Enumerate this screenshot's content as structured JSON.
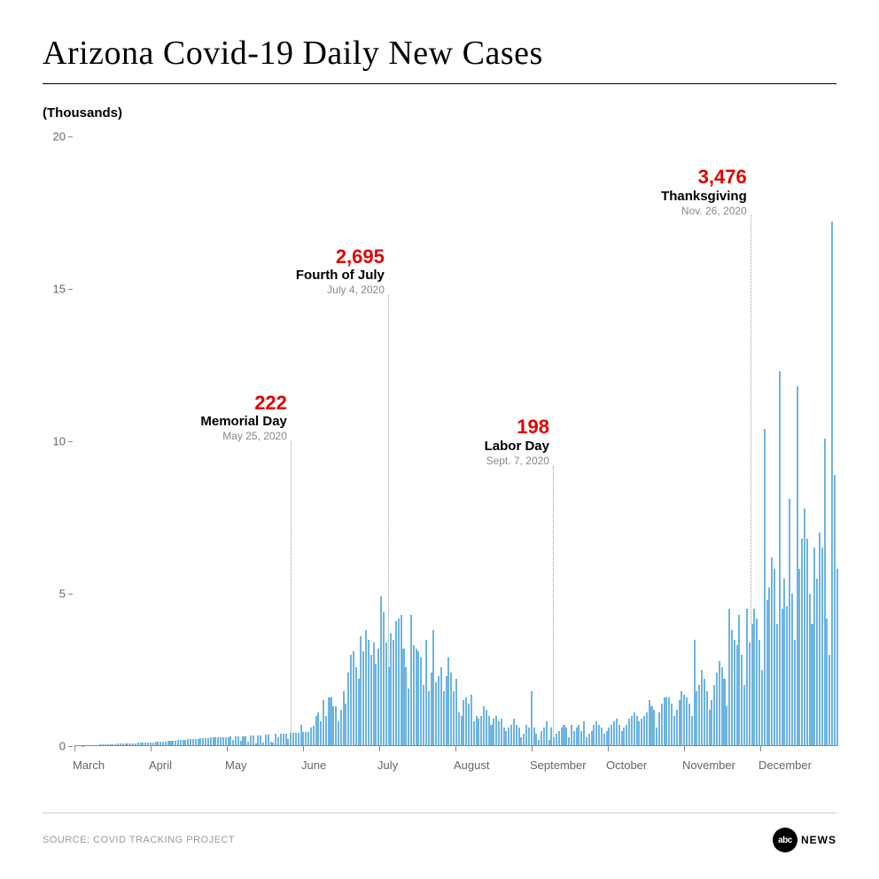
{
  "title": "Arizona Covid-19 Daily New Cases",
  "y_unit_label": "(Thousands)",
  "source": "SOURCE: COVID TRACKING PROJECT",
  "logo": {
    "circle": "abc",
    "text": "NEWS"
  },
  "chart": {
    "type": "bar",
    "background_color": "#ffffff",
    "bar_color": "#6db4e3",
    "baseline_color": "#888888",
    "tick_color": "#888888",
    "tick_label_color": "#666666",
    "annotation_value_color": "#e20000",
    "annotation_label_color": "#000000",
    "annotation_date_color": "#888888",
    "annotation_line_color": "#999999",
    "title_fontsize": 38,
    "y_unit_fontsize": 15,
    "tick_fontsize": 13,
    "ann_value_fontsize": 22,
    "ann_label_fontsize": 15,
    "ann_date_fontsize": 12,
    "ylim": [
      0,
      20
    ],
    "yticks": [
      0,
      5,
      10,
      15,
      20
    ],
    "x_labels": [
      "March",
      "April",
      "May",
      "June",
      "July",
      "August",
      "September",
      "October",
      "November",
      "December"
    ],
    "values": [
      0,
      0,
      0,
      0.01,
      0.02,
      0.02,
      0.03,
      0.03,
      0.04,
      0.04,
      0.05,
      0.05,
      0.06,
      0.06,
      0.07,
      0.07,
      0.07,
      0.08,
      0.08,
      0.08,
      0.09,
      0.09,
      0.1,
      0.1,
      0.1,
      0.11,
      0.11,
      0.12,
      0.12,
      0.12,
      0.13,
      0.13,
      0.14,
      0.14,
      0.15,
      0.15,
      0.16,
      0.17,
      0.17,
      0.18,
      0.18,
      0.19,
      0.2,
      0.2,
      0.21,
      0.22,
      0.22,
      0.23,
      0.24,
      0.24,
      0.25,
      0.26,
      0.26,
      0.27,
      0.28,
      0.28,
      0.29,
      0.3,
      0.3,
      0.3,
      0.3,
      0.3,
      0.31,
      0.2,
      0.31,
      0.32,
      0.17,
      0.33,
      0.33,
      0.16,
      0.35,
      0.35,
      0.1,
      0.36,
      0.36,
      0.12,
      0.38,
      0.38,
      0.15,
      0.13,
      0.4,
      0.3,
      0.4,
      0.42,
      0.42,
      0.22,
      0.43,
      0.44,
      0.44,
      0.45,
      0.7,
      0.47,
      0.47,
      0.48,
      0.62,
      0.68,
      1.0,
      1.1,
      0.8,
      1.5,
      1.0,
      1.6,
      1.6,
      1.3,
      1.3,
      0.8,
      1.2,
      1.8,
      1.4,
      2.4,
      3.0,
      3.1,
      2.6,
      2.2,
      3.6,
      3.1,
      3.8,
      3.5,
      3.0,
      3.4,
      2.7,
      3.2,
      4.9,
      4.4,
      3.4,
      2.6,
      3.7,
      3.5,
      4.1,
      4.2,
      4.3,
      3.2,
      2.6,
      1.9,
      4.3,
      3.3,
      3.2,
      3.1,
      2.9,
      2.0,
      3.5,
      1.8,
      2.4,
      3.8,
      2.1,
      2.3,
      2.6,
      1.8,
      2.3,
      2.9,
      2.4,
      1.8,
      2.2,
      1.1,
      1.0,
      1.5,
      1.6,
      1.4,
      1.7,
      0.8,
      1.0,
      0.9,
      1.0,
      1.3,
      1.2,
      1.0,
      0.7,
      0.9,
      1.0,
      0.8,
      0.9,
      0.6,
      0.5,
      0.6,
      0.7,
      0.9,
      0.7,
      0.6,
      0.3,
      0.4,
      0.7,
      0.6,
      1.8,
      0.6,
      0.4,
      0.2,
      0.5,
      0.6,
      0.8,
      0.2,
      0.6,
      0.3,
      0.4,
      0.5,
      0.6,
      0.7,
      0.6,
      0.3,
      0.7,
      0.5,
      0.6,
      0.7,
      0.5,
      0.8,
      0.3,
      0.4,
      0.5,
      0.7,
      0.8,
      0.7,
      0.6,
      0.4,
      0.5,
      0.6,
      0.7,
      0.8,
      0.9,
      0.7,
      0.5,
      0.6,
      0.7,
      0.9,
      1.0,
      1.1,
      1.0,
      0.8,
      0.9,
      1.0,
      1.1,
      1.5,
      1.3,
      1.2,
      0.6,
      1.1,
      1.4,
      1.6,
      1.6,
      1.6,
      1.4,
      1.0,
      1.2,
      1.5,
      1.8,
      1.7,
      1.6,
      1.4,
      1.0,
      3.5,
      1.8,
      2.0,
      2.5,
      2.2,
      1.8,
      1.2,
      1.5,
      2.0,
      2.4,
      2.8,
      2.6,
      2.2,
      1.3,
      4.5,
      3.8,
      3.5,
      3.3,
      4.3,
      3.0,
      2.0,
      4.5,
      3.4,
      4.0,
      4.5,
      4.2,
      3.5,
      2.5,
      10.4,
      4.8,
      5.2,
      6.2,
      5.8,
      4.0,
      12.3,
      4.5,
      5.5,
      4.6,
      8.1,
      5.0,
      3.5,
      11.8,
      5.8,
      6.8,
      7.8,
      6.8,
      5.0,
      4.0,
      6.5,
      5.5,
      7.0,
      6.5,
      10.1,
      4.2,
      3.0,
      17.2,
      8.9,
      5.8
    ],
    "annotations": [
      {
        "value": "222",
        "label": "Memorial Day",
        "date": "May 25, 2020",
        "bar_index": 86,
        "text_top_pct": 42,
        "line_bottom_from_bar": true
      },
      {
        "value": "2,695",
        "label": "Fourth of July",
        "date": "July 4, 2020",
        "bar_index": 125,
        "text_top_pct": 18,
        "line_bottom_from_bar": true
      },
      {
        "value": "198",
        "label": "Labor Day",
        "date": "Sept. 7, 2020",
        "bar_index": 191,
        "text_top_pct": 46,
        "line_bottom_from_bar": true
      },
      {
        "value": "3,476",
        "label": "Thanksgiving",
        "date": "Nov. 26, 2020",
        "bar_index": 270,
        "text_top_pct": 5,
        "line_bottom_from_bar": true
      }
    ]
  }
}
